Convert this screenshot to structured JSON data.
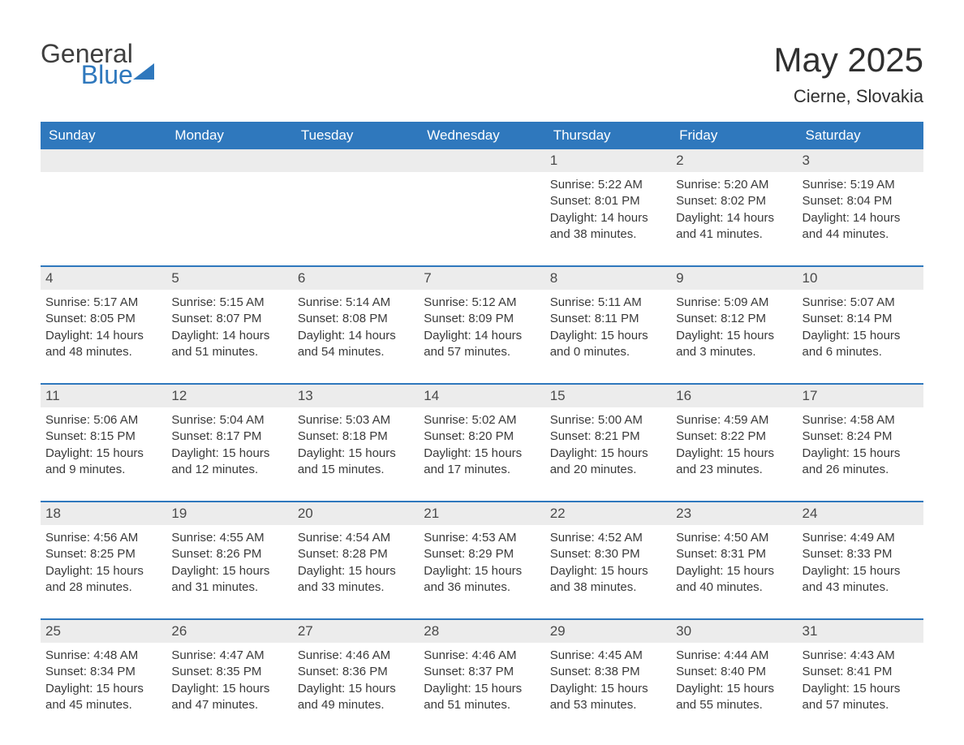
{
  "logo": {
    "word1": "General",
    "word2": "Blue"
  },
  "header": {
    "title": "May 2025",
    "location": "Cierne, Slovakia"
  },
  "style": {
    "header_bg": "#2f78bd",
    "header_text": "#ffffff",
    "row_border": "#2f78bd",
    "daynum_bg": "#ececec",
    "body_text": "#3a3a3a",
    "title_fontsize": 42,
    "location_fontsize": 22,
    "dayhead_fontsize": 17,
    "info_fontsize": 15
  },
  "columns": [
    "Sunday",
    "Monday",
    "Tuesday",
    "Wednesday",
    "Thursday",
    "Friday",
    "Saturday"
  ],
  "weeks": [
    [
      null,
      null,
      null,
      null,
      {
        "n": "1",
        "sr": "5:22 AM",
        "ss": "8:01 PM",
        "dh": 14,
        "dm": 38
      },
      {
        "n": "2",
        "sr": "5:20 AM",
        "ss": "8:02 PM",
        "dh": 14,
        "dm": 41
      },
      {
        "n": "3",
        "sr": "5:19 AM",
        "ss": "8:04 PM",
        "dh": 14,
        "dm": 44
      }
    ],
    [
      {
        "n": "4",
        "sr": "5:17 AM",
        "ss": "8:05 PM",
        "dh": 14,
        "dm": 48
      },
      {
        "n": "5",
        "sr": "5:15 AM",
        "ss": "8:07 PM",
        "dh": 14,
        "dm": 51
      },
      {
        "n": "6",
        "sr": "5:14 AM",
        "ss": "8:08 PM",
        "dh": 14,
        "dm": 54
      },
      {
        "n": "7",
        "sr": "5:12 AM",
        "ss": "8:09 PM",
        "dh": 14,
        "dm": 57
      },
      {
        "n": "8",
        "sr": "5:11 AM",
        "ss": "8:11 PM",
        "dh": 15,
        "dm": 0
      },
      {
        "n": "9",
        "sr": "5:09 AM",
        "ss": "8:12 PM",
        "dh": 15,
        "dm": 3
      },
      {
        "n": "10",
        "sr": "5:07 AM",
        "ss": "8:14 PM",
        "dh": 15,
        "dm": 6
      }
    ],
    [
      {
        "n": "11",
        "sr": "5:06 AM",
        "ss": "8:15 PM",
        "dh": 15,
        "dm": 9
      },
      {
        "n": "12",
        "sr": "5:04 AM",
        "ss": "8:17 PM",
        "dh": 15,
        "dm": 12
      },
      {
        "n": "13",
        "sr": "5:03 AM",
        "ss": "8:18 PM",
        "dh": 15,
        "dm": 15
      },
      {
        "n": "14",
        "sr": "5:02 AM",
        "ss": "8:20 PM",
        "dh": 15,
        "dm": 17
      },
      {
        "n": "15",
        "sr": "5:00 AM",
        "ss": "8:21 PM",
        "dh": 15,
        "dm": 20
      },
      {
        "n": "16",
        "sr": "4:59 AM",
        "ss": "8:22 PM",
        "dh": 15,
        "dm": 23
      },
      {
        "n": "17",
        "sr": "4:58 AM",
        "ss": "8:24 PM",
        "dh": 15,
        "dm": 26
      }
    ],
    [
      {
        "n": "18",
        "sr": "4:56 AM",
        "ss": "8:25 PM",
        "dh": 15,
        "dm": 28
      },
      {
        "n": "19",
        "sr": "4:55 AM",
        "ss": "8:26 PM",
        "dh": 15,
        "dm": 31
      },
      {
        "n": "20",
        "sr": "4:54 AM",
        "ss": "8:28 PM",
        "dh": 15,
        "dm": 33
      },
      {
        "n": "21",
        "sr": "4:53 AM",
        "ss": "8:29 PM",
        "dh": 15,
        "dm": 36
      },
      {
        "n": "22",
        "sr": "4:52 AM",
        "ss": "8:30 PM",
        "dh": 15,
        "dm": 38
      },
      {
        "n": "23",
        "sr": "4:50 AM",
        "ss": "8:31 PM",
        "dh": 15,
        "dm": 40
      },
      {
        "n": "24",
        "sr": "4:49 AM",
        "ss": "8:33 PM",
        "dh": 15,
        "dm": 43
      }
    ],
    [
      {
        "n": "25",
        "sr": "4:48 AM",
        "ss": "8:34 PM",
        "dh": 15,
        "dm": 45
      },
      {
        "n": "26",
        "sr": "4:47 AM",
        "ss": "8:35 PM",
        "dh": 15,
        "dm": 47
      },
      {
        "n": "27",
        "sr": "4:46 AM",
        "ss": "8:36 PM",
        "dh": 15,
        "dm": 49
      },
      {
        "n": "28",
        "sr": "4:46 AM",
        "ss": "8:37 PM",
        "dh": 15,
        "dm": 51
      },
      {
        "n": "29",
        "sr": "4:45 AM",
        "ss": "8:38 PM",
        "dh": 15,
        "dm": 53
      },
      {
        "n": "30",
        "sr": "4:44 AM",
        "ss": "8:40 PM",
        "dh": 15,
        "dm": 55
      },
      {
        "n": "31",
        "sr": "4:43 AM",
        "ss": "8:41 PM",
        "dh": 15,
        "dm": 57
      }
    ]
  ],
  "labels": {
    "sunrise": "Sunrise: ",
    "sunset": "Sunset: ",
    "daylight_pre": "Daylight: ",
    "hours": " hours",
    "and": "and ",
    "minutes": " minutes."
  }
}
